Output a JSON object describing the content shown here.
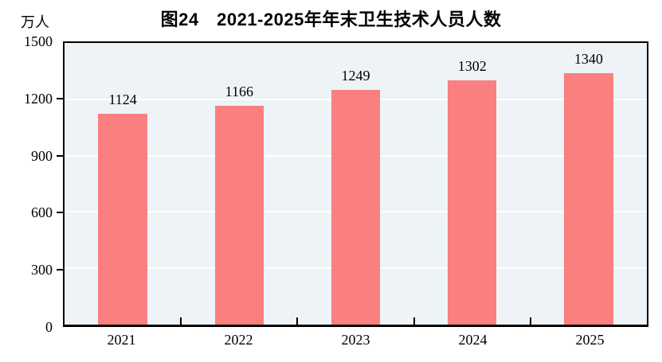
{
  "chart_data": {
    "type": "bar",
    "title": "图24　2021-2025年年末卫生技术人员人数",
    "unit_label": "万人",
    "categories": [
      "2021",
      "2022",
      "2023",
      "2024",
      "2025"
    ],
    "values": [
      1124,
      1166,
      1249,
      1302,
      1340
    ],
    "ylim": [
      0,
      1500
    ],
    "yticks": [
      0,
      300,
      600,
      900,
      1200,
      1500
    ],
    "grid": true,
    "legend": "none",
    "colors": {
      "bar": "#FA7F7F",
      "plot_background": "#EDF3F7",
      "gridline": "#FFFFFF",
      "axis": "#000000",
      "text": "#000000"
    }
  }
}
